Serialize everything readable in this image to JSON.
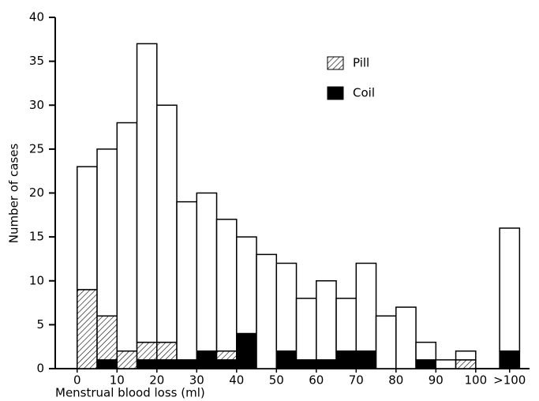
{
  "chart_data": {
    "type": "bar",
    "x_label": "Menstrual blood loss (ml)",
    "y_label": "Number of cases",
    "x": [
      2.5,
      7.5,
      12.5,
      17.5,
      22.5,
      27.5,
      32.5,
      37.5,
      42.5,
      47.5,
      52.5,
      57.5,
      62.5,
      67.5,
      72.5,
      77.5,
      82.5,
      87.5,
      92.5,
      97.5,
      108.5
    ],
    "series": [
      {
        "name": "Coil",
        "color": "#000000",
        "values": [
          0,
          1,
          0,
          1,
          1,
          1,
          2,
          1,
          4,
          0,
          2,
          1,
          1,
          2,
          2,
          0,
          0,
          1,
          0,
          0,
          2
        ]
      },
      {
        "name": "Pill",
        "color": "#000000",
        "hatch": true,
        "values": [
          9,
          5,
          2,
          2,
          2,
          0,
          0,
          1,
          0,
          0,
          0,
          0,
          0,
          0,
          0,
          0,
          0,
          0,
          0,
          1,
          0
        ]
      },
      {
        "color": "#ffffff",
        "values": [
          14,
          19,
          26,
          34,
          27,
          18,
          18,
          15,
          11,
          13,
          10,
          7,
          9,
          6,
          10,
          6,
          7,
          2,
          1,
          1,
          14
        ]
      }
    ],
    "xlim": [
      -5.5,
      113.5
    ],
    "xticks": [
      0,
      10,
      20,
      30,
      40,
      50,
      60,
      70,
      80,
      90,
      100,
      {
        "value": 108.5,
        "label": ">100"
      }
    ],
    "ylim": [
      0,
      40
    ],
    "yticks": [
      0,
      5,
      10,
      15,
      20,
      25,
      30,
      35,
      40
    ],
    "grid": false
  }
}
